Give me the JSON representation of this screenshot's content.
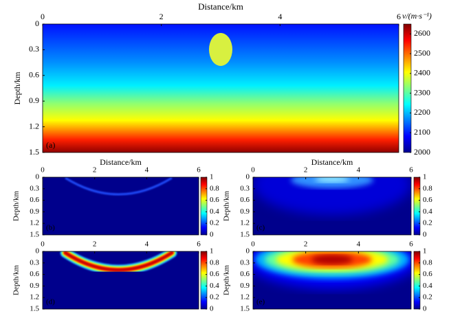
{
  "charts": [
    {
      "chart_data": {
        "type": "heatmap",
        "xlabel": "Distance/km",
        "ylabel": "Depth/km",
        "panel_label": "(a)",
        "xlim": [
          0,
          6
        ],
        "xticks": [
          0,
          2,
          4,
          6
        ],
        "ylim": [
          0,
          1.5
        ],
        "yticks": [
          0,
          0.3,
          0.6,
          0.9,
          1.2,
          1.5
        ],
        "colorbar": {
          "label": "v/(m·s⁻¹)",
          "lim": [
            2000,
            2650
          ],
          "ticks": [
            2000,
            2100,
            2200,
            2300,
            2400,
            2500,
            2600
          ]
        }
      }
    },
    {
      "chart_data": {
        "type": "heatmap",
        "xlabel": "Distance/km",
        "ylabel": "Depth/km",
        "panel_label": "(b)",
        "xlim": [
          0,
          6
        ],
        "xticks": [
          0,
          2,
          4,
          6
        ],
        "ylim": [
          0,
          1.5
        ],
        "yticks": [
          0,
          0.3,
          0.6,
          0.9,
          1.2,
          1.5
        ],
        "colorbar": {
          "lim": [
            0,
            1
          ],
          "ticks": [
            0,
            0.2,
            0.4,
            0.6,
            0.8,
            1
          ]
        }
      }
    },
    {
      "chart_data": {
        "type": "heatmap",
        "xlabel": "Distance/km",
        "ylabel": "Depth/km",
        "panel_label": "(c)",
        "xlim": [
          0,
          6
        ],
        "xticks": [
          0,
          2,
          4,
          6
        ],
        "ylim": [
          0,
          1.5
        ],
        "yticks": [
          0,
          0.3,
          0.6,
          0.9,
          1.2,
          1.5
        ],
        "colorbar": {
          "lim": [
            0,
            1
          ],
          "ticks": [
            0,
            0.2,
            0.4,
            0.6,
            0.8,
            1
          ]
        }
      }
    },
    {
      "chart_data": {
        "type": "heatmap",
        "ylabel": "Depth/km",
        "panel_label": "(d)",
        "xlim": [
          0,
          6
        ],
        "xticks": [
          0,
          2,
          4,
          6
        ],
        "ylim": [
          0,
          1.5
        ],
        "yticks": [
          0,
          0.3,
          0.6,
          0.9,
          1.2,
          1.5
        ],
        "colorbar": {
          "lim": [
            0,
            1
          ],
          "ticks": [
            0,
            0.2,
            0.4,
            0.6,
            0.8,
            1
          ]
        }
      }
    },
    {
      "chart_data": {
        "type": "heatmap",
        "ylabel": "Depth/km",
        "panel_label": "(e)",
        "xlim": [
          0,
          6
        ],
        "xticks": [
          0,
          2,
          4,
          6
        ],
        "ylim": [
          0,
          1.5
        ],
        "yticks": [
          0,
          0.3,
          0.6,
          0.9,
          1.2,
          1.5
        ],
        "colorbar": {
          "lim": [
            0,
            1
          ],
          "ticks": [
            0,
            0.2,
            0.4,
            0.6,
            0.8,
            1
          ]
        }
      }
    }
  ]
}
